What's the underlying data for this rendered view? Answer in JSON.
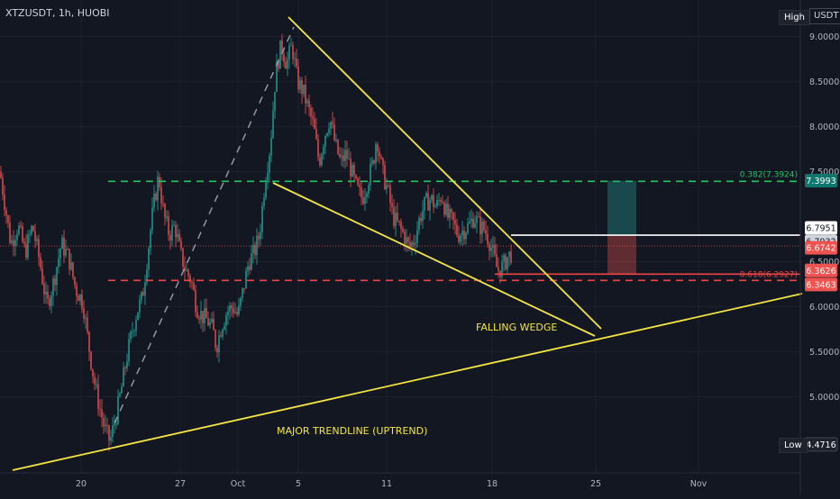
{
  "header": {
    "symbol": "XTZUSDT, 1h, HUOBI",
    "high_label": "High",
    "low_label": "Low",
    "currency": "USDT"
  },
  "colors": {
    "background": "#131722",
    "candle_up": "#26a69a",
    "candle_down": "#ef5350",
    "trendline": "#f5e642",
    "fib_382": "#22c55e",
    "fib_618": "#ef4444",
    "annotation": "#f5e642"
  },
  "annotations": {
    "falling_wedge": "FALLING WEDGE",
    "major_trendline": "MAJOR TRENDLINE (UPTREND)",
    "fib_382_label": "0.382(7.3924)",
    "fib_618_label": "0.618(6.2927)"
  },
  "chart_data": {
    "type": "candlestick",
    "title": "XTZUSDT, 1h, HUOBI",
    "ylim": [
      4.25,
      9.2
    ],
    "y_ticks": [
      "9.0000",
      "8.5000",
      "8.0000",
      "7.5000",
      "6.5000",
      "6.0000",
      "5.5000",
      "5.0000"
    ],
    "x_ticks": [
      "20",
      "27",
      "Oct",
      "5",
      "11",
      "18",
      "25",
      "Nov"
    ],
    "price_labels": [
      {
        "text": "7.3993",
        "value": 7.3993,
        "kind": "fib382"
      },
      {
        "text": "6.7951",
        "value": 6.7951,
        "kind": "plain"
      },
      {
        "text": "6.7932",
        "value": 6.7932,
        "kind": "grey"
      },
      {
        "text": "6.6742",
        "value": 6.6742,
        "kind": "last"
      },
      {
        "text": "6.3626",
        "value": 6.3626,
        "kind": "red"
      },
      {
        "text": "6.3463",
        "value": 6.3463,
        "kind": "red"
      },
      {
        "text": "4.4716",
        "value": 4.4716,
        "kind": "low"
      }
    ],
    "high": 9.13,
    "low": 4.4716,
    "last_price": 6.6742,
    "fib_levels": [
      {
        "ratio": "0.382",
        "value": 7.3924
      },
      {
        "ratio": "0.618",
        "value": 6.2927
      }
    ],
    "position_box": {
      "entry": 6.7951,
      "target": 7.3993,
      "stop": 6.3626
    },
    "price_path": [
      [
        0,
        7.5
      ],
      [
        6,
        7.1
      ],
      [
        12,
        6.7
      ],
      [
        20,
        6.9
      ],
      [
        28,
        6.6
      ],
      [
        36,
        6.9
      ],
      [
        44,
        6.5
      ],
      [
        52,
        6.0
      ],
      [
        60,
        6.3
      ],
      [
        68,
        6.7
      ],
      [
        76,
        6.55
      ],
      [
        84,
        6.2
      ],
      [
        92,
        6.05
      ],
      [
        98,
        5.6
      ],
      [
        104,
        5.2
      ],
      [
        110,
        4.9
      ],
      [
        116,
        4.65
      ],
      [
        122,
        4.5
      ],
      [
        128,
        4.75
      ],
      [
        134,
        5.05
      ],
      [
        140,
        5.4
      ],
      [
        146,
        5.7
      ],
      [
        152,
        5.95
      ],
      [
        158,
        6.1
      ],
      [
        164,
        6.6
      ],
      [
        170,
        7.1
      ],
      [
        176,
        7.45
      ],
      [
        182,
        7.0
      ],
      [
        188,
        6.8
      ],
      [
        194,
        6.9
      ],
      [
        200,
        6.6
      ],
      [
        206,
        6.4
      ],
      [
        212,
        6.3
      ],
      [
        218,
        6.0
      ],
      [
        224,
        5.9
      ],
      [
        230,
        5.85
      ],
      [
        236,
        5.75
      ],
      [
        240,
        5.55
      ],
      [
        246,
        5.8
      ],
      [
        252,
        5.95
      ],
      [
        258,
        6.0
      ],
      [
        264,
        5.9
      ],
      [
        270,
        6.2
      ],
      [
        276,
        6.5
      ],
      [
        282,
        6.6
      ],
      [
        288,
        6.8
      ],
      [
        294,
        7.4
      ],
      [
        300,
        7.8
      ],
      [
        306,
        8.6
      ],
      [
        312,
        8.9
      ],
      [
        318,
        8.7
      ],
      [
        324,
        8.9
      ],
      [
        330,
        8.5
      ],
      [
        336,
        8.4
      ],
      [
        342,
        8.2
      ],
      [
        348,
        8.0
      ],
      [
        354,
        7.6
      ],
      [
        360,
        7.9
      ],
      [
        366,
        8.1
      ],
      [
        372,
        7.8
      ],
      [
        378,
        7.6
      ],
      [
        384,
        7.7
      ],
      [
        390,
        7.5
      ],
      [
        396,
        7.3
      ],
      [
        402,
        7.2
      ],
      [
        408,
        7.4
      ],
      [
        414,
        7.6
      ],
      [
        418,
        7.9
      ],
      [
        424,
        7.5
      ],
      [
        430,
        7.3
      ],
      [
        436,
        7.0
      ],
      [
        442,
        6.9
      ],
      [
        448,
        6.8
      ],
      [
        454,
        6.65
      ],
      [
        460,
        6.75
      ],
      [
        466,
        7.0
      ],
      [
        472,
        7.15
      ],
      [
        478,
        7.2
      ],
      [
        484,
        7.1
      ],
      [
        490,
        7.25
      ],
      [
        496,
        7.0
      ],
      [
        502,
        6.95
      ],
      [
        508,
        6.8
      ],
      [
        514,
        6.85
      ],
      [
        520,
        6.9
      ],
      [
        526,
        7.0
      ],
      [
        532,
        6.9
      ],
      [
        538,
        6.85
      ],
      [
        544,
        6.7
      ],
      [
        548,
        6.55
      ],
      [
        552,
        6.4
      ],
      [
        558,
        6.45
      ],
      [
        563,
        6.55
      ],
      [
        568,
        6.6
      ]
    ]
  }
}
